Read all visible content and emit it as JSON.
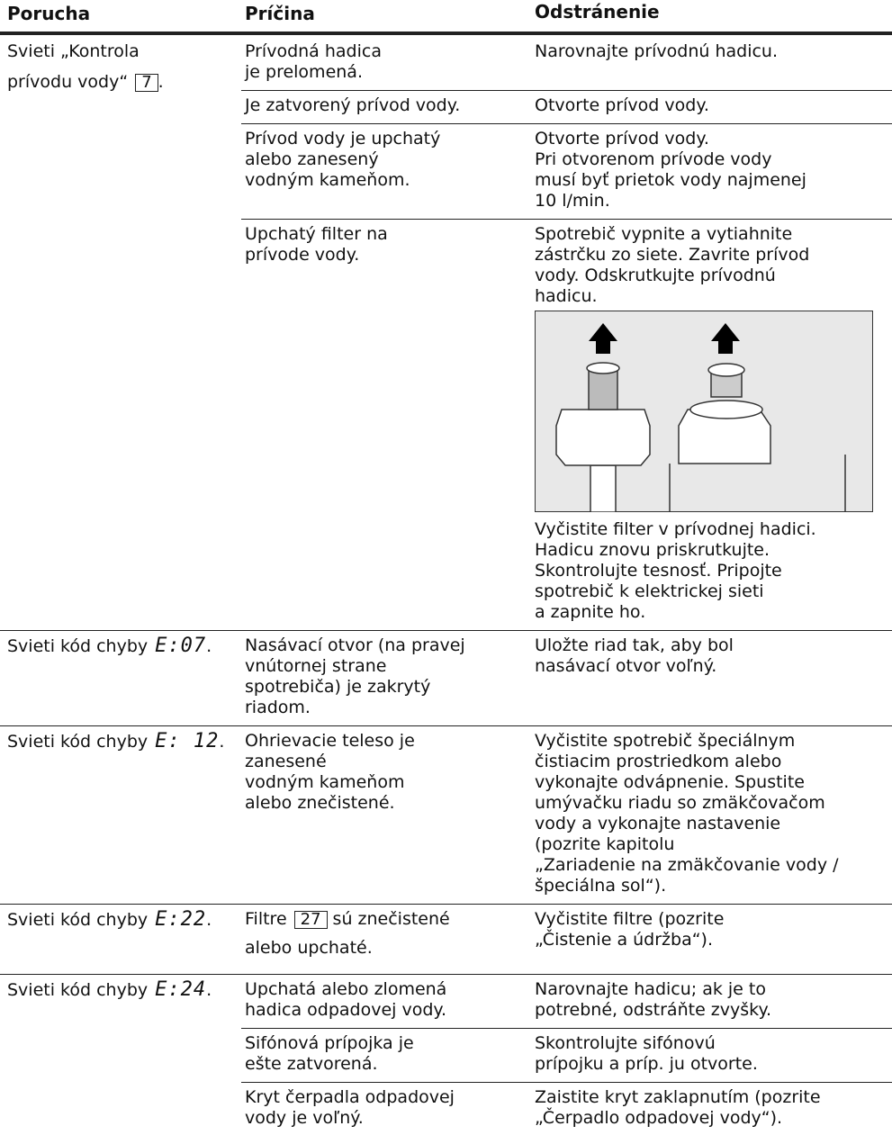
{
  "header": {
    "fault": "Porucha",
    "cause": "Príčina",
    "remedy": "Odstránenie"
  },
  "rows": [
    {
      "fault": [
        "Svieti „Kontrola",
        "prívodu vody“"
      ],
      "ref": "7",
      "suffix": ".",
      "causes": [
        {
          "cause": [
            "Prívodná hadica",
            "je prelomená."
          ],
          "remedy": [
            "Narovnajte prívodnú hadicu."
          ]
        },
        {
          "cause": [
            "Je zatvorený prívod vody."
          ],
          "remedy": [
            "Otvorte prívod vody."
          ]
        },
        {
          "cause": [
            "Prívod vody je upchatý",
            "alebo zanesený",
            "vodným kameňom."
          ],
          "remedy": [
            "Otvorte prívod vody.",
            "Pri otvorenom prívode vody",
            "musí byť prietok vody najmenej",
            "10 l/min."
          ]
        },
        {
          "cause": [
            "Upchatý filter na",
            "prívode vody."
          ],
          "remedy": [
            "Spotrebič vypnite a vytiahnite",
            "zástrčku zo siete. Zavrite prívod",
            "vody. Odskrutkujte prívodnú",
            "hadicu."
          ],
          "remedy_after": [
            "Vyčistite filter v prívodnej hadici.",
            "Hadicu znovu priskrutkujte.",
            "Skontrolujte tesnosť. Pripojte",
            "spotrebič k elektrickej sieti",
            "a zapnite ho."
          ]
        }
      ]
    },
    {
      "fault": [
        "Svieti kód chyby"
      ],
      "code": "E:07",
      "suffix": ".",
      "causes": [
        {
          "cause": [
            "Nasávací otvor (na pravej",
            "vnútornej strane",
            "spotrebiča) je zakrytý",
            "riadom."
          ],
          "remedy": [
            "Uložte riad tak, aby bol",
            "nasávací otvor voľný."
          ]
        }
      ]
    },
    {
      "fault": [
        "Svieti kód chyby"
      ],
      "code": "E: 12",
      "suffix": ".",
      "causes": [
        {
          "cause": [
            "Ohrievacie teleso je",
            "zanesené",
            "vodným kameňom",
            "alebo znečistené."
          ],
          "remedy": [
            "Vyčistite spotrebič špeciálnym",
            "čistiacim prostriedkom alebo",
            "vykonajte odvápnenie. Spustite",
            "umývačku riadu so zmäkčovačom",
            "vody a vykonajte nastavenie",
            "(pozrite kapitolu",
            "„Zariadenie na zmäkčovanie vody /",
            "špeciálna sol“)."
          ]
        }
      ]
    },
    {
      "fault": [
        "Svieti kód chyby"
      ],
      "code": "E:22",
      "suffix": ".",
      "causes": [
        {
          "cause_lead": "Filtre",
          "cause_ref": "27",
          "cause": [
            "sú znečistené",
            "alebo upchaté."
          ],
          "remedy": [
            "Vyčistite filtre (pozrite",
            "„Čistenie a údržba“)."
          ]
        }
      ]
    },
    {
      "fault": [
        "Svieti kód chyby"
      ],
      "code": "E:24",
      "suffix": ".",
      "causes": [
        {
          "cause": [
            "Upchatá alebo zlomená",
            "hadica odpadovej vody."
          ],
          "remedy": [
            "Narovnajte hadicu; ak je to",
            "potrebné, odstráňte zvyšky."
          ]
        },
        {
          "cause": [
            "Sifónová prípojka je",
            "ešte zatvorená."
          ],
          "remedy": [
            "Skontrolujte sifónovú",
            "prípojku a príp. ju otvorte."
          ]
        },
        {
          "cause": [
            "Kryt čerpadla odpadovej",
            "vody je voľný."
          ],
          "remedy": [
            "Zaistite kryt zaklapnutím (pozrite",
            "„Čerpadlo odpadovej vody“)."
          ]
        }
      ]
    }
  ]
}
